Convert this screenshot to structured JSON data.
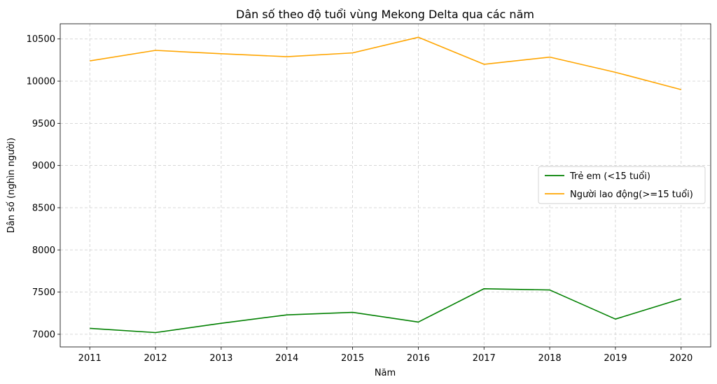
{
  "chart_data": {
    "type": "line",
    "title": "Dân số theo độ tuổi vùng Mekong Delta qua các năm",
    "xlabel": "Năm",
    "ylabel": "Dân số (nghìn người)",
    "x": [
      2011,
      2012,
      2013,
      2014,
      2015,
      2016,
      2017,
      2018,
      2019,
      2020
    ],
    "xlim": [
      2010.55,
      2020.45
    ],
    "ylim": [
      6850,
      10680
    ],
    "yticks": [
      7000,
      7500,
      8000,
      8500,
      9000,
      9500,
      10000,
      10500
    ],
    "grid": true,
    "legend_position": "center-right",
    "series": [
      {
        "name": "Trẻ em (<15 tuổi)",
        "color": "#008000",
        "values": [
          7070,
          7020,
          7130,
          7230,
          7260,
          7145,
          7540,
          7525,
          7180,
          7420
        ]
      },
      {
        "name": "Người lao động(>=15 tuổi)",
        "color": "#FFA500",
        "values": [
          10240,
          10365,
          10325,
          10290,
          10335,
          10520,
          10200,
          10285,
          10105,
          9900
        ]
      }
    ]
  }
}
